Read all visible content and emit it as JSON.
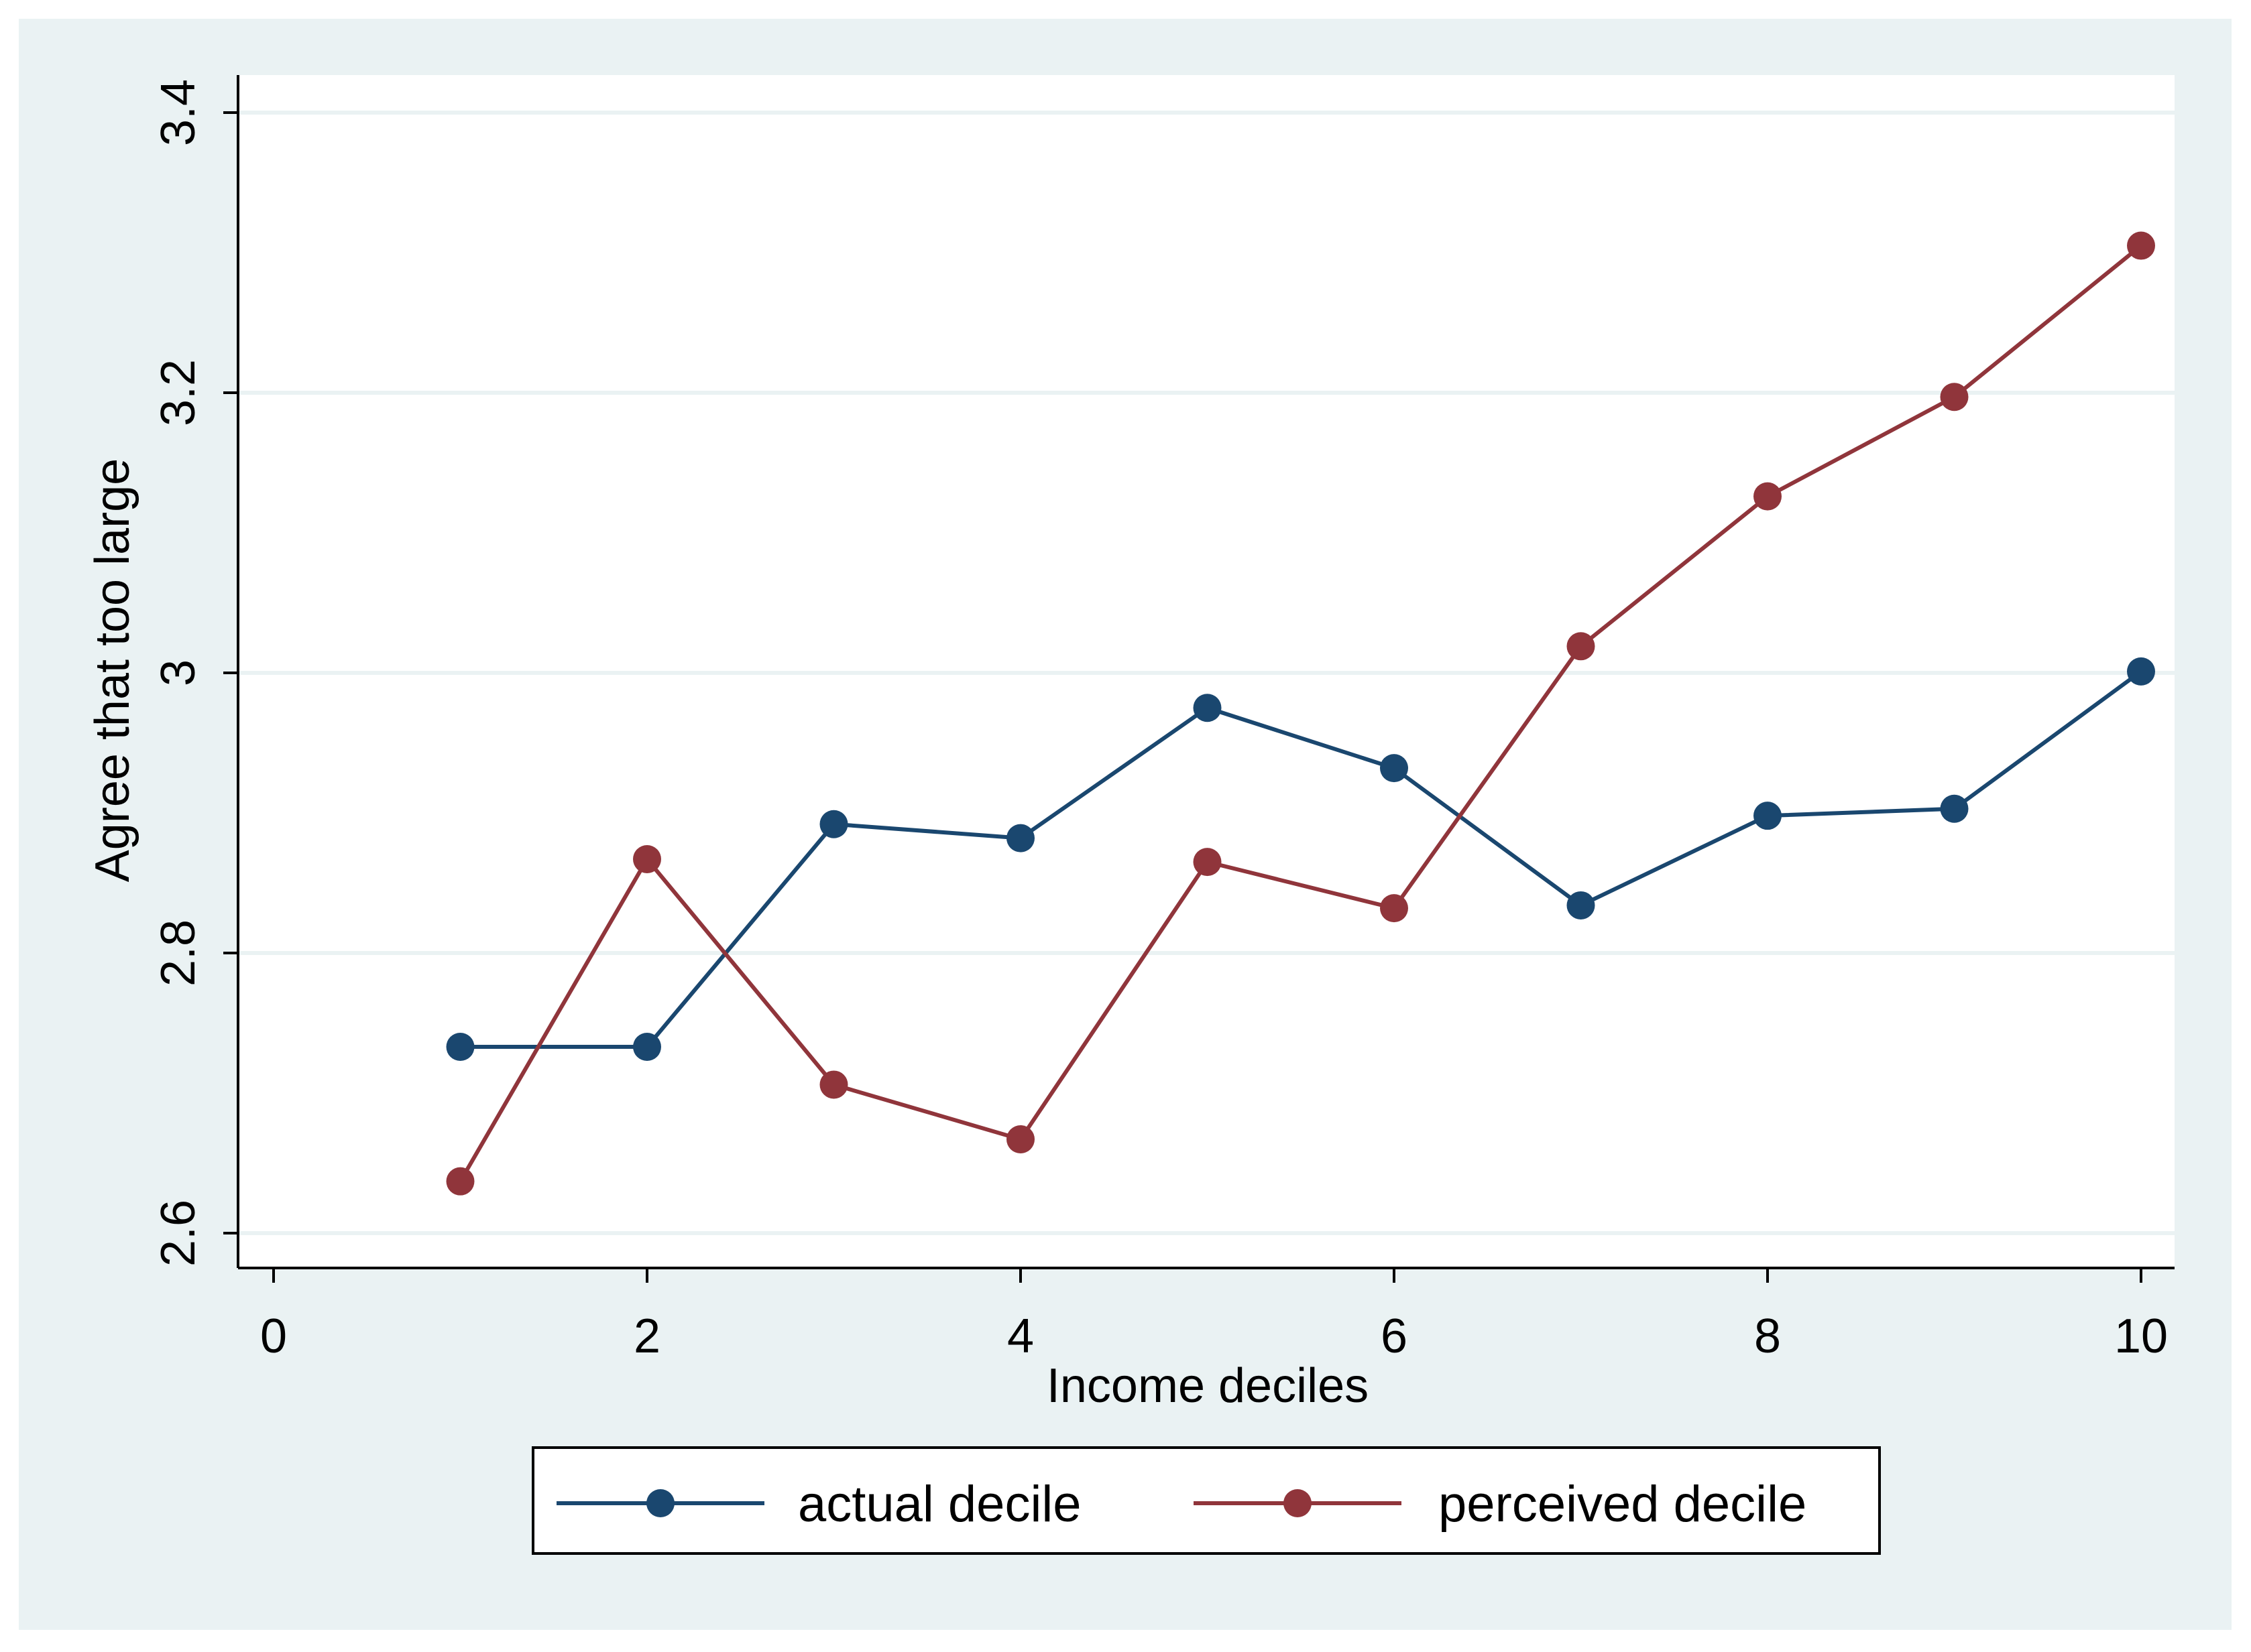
{
  "chart_data": {
    "type": "line",
    "title": "",
    "xlabel": "Income deciles",
    "ylabel": "Agree that too large",
    "xlim": [
      0,
      10
    ],
    "ylim": [
      2.6,
      3.4
    ],
    "x_ticks": [
      0,
      2,
      4,
      6,
      8,
      10
    ],
    "x_tick_labels": [
      "0",
      "2",
      "4",
      "6",
      "8",
      "10"
    ],
    "y_ticks": [
      2.6,
      2.8,
      3.0,
      3.2,
      3.4
    ],
    "y_tick_labels": [
      "2.6",
      "2.8",
      "3",
      "3.2",
      "3.4"
    ],
    "grid": true,
    "grid_axis": "y",
    "legend_position": "bottom",
    "x": [
      1,
      2,
      3,
      4,
      5,
      6,
      7,
      8,
      9,
      10
    ],
    "series": [
      {
        "name": "actual decile",
        "color": "#1a476f",
        "marker": "circle",
        "values": [
          2.733,
          2.733,
          2.892,
          2.882,
          2.975,
          2.932,
          2.834,
          2.898,
          2.903,
          3.001
        ]
      },
      {
        "name": "perceived decile",
        "color": "#90353b",
        "marker": "circle",
        "values": [
          2.637,
          2.867,
          2.706,
          2.667,
          2.865,
          2.832,
          3.019,
          3.126,
          3.197,
          3.305
        ]
      }
    ]
  },
  "colors": {
    "outer_background": "#eaf2f3",
    "plot_background": "#ffffff",
    "grid": "#eaf2f3",
    "axis": "#000000"
  }
}
